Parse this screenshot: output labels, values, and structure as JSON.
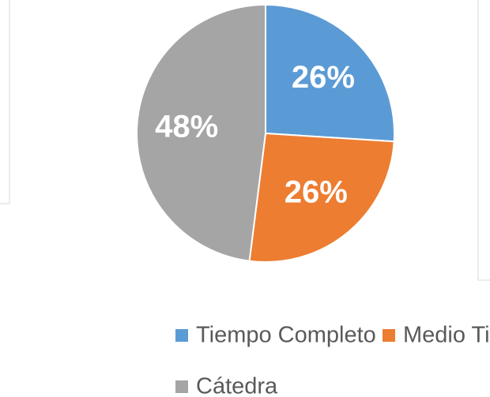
{
  "chart_data": {
    "type": "pie",
    "categories": [
      "Tiempo Completo",
      "Medio Tiempo",
      "Cátedra"
    ],
    "values": [
      26,
      26,
      48
    ],
    "value_labels": [
      "26%",
      "26%",
      "48%"
    ],
    "colors": [
      "#5b9bd5",
      "#ed7d31",
      "#a5a5a5"
    ],
    "legend": "bottom"
  }
}
